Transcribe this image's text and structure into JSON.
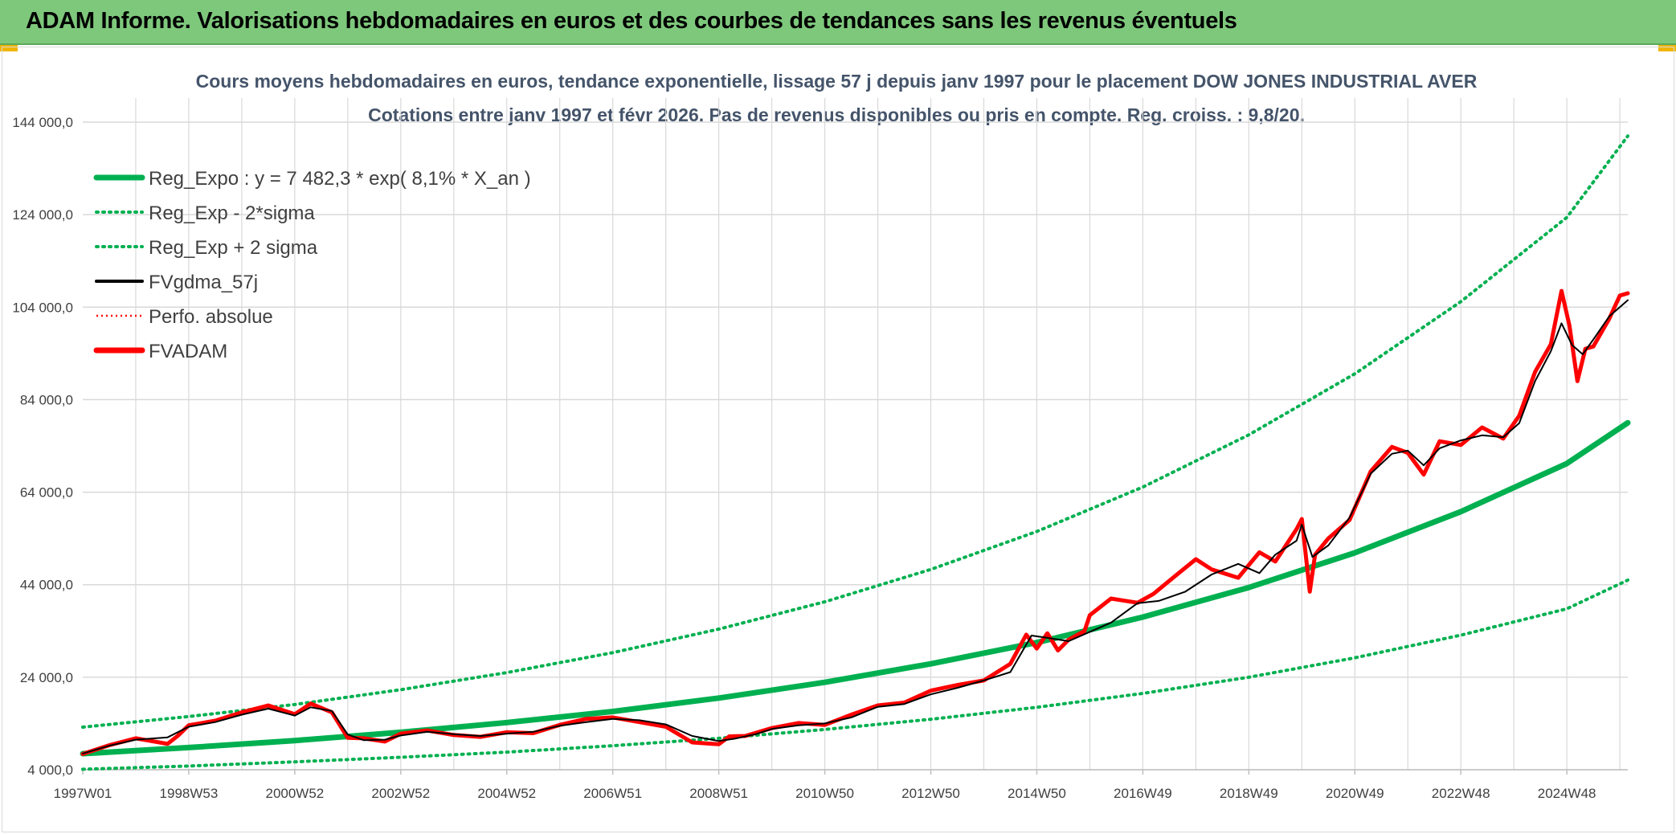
{
  "header": {
    "title": "ADAM Informe. Valorisations hebdomadaires en euros et des courbes de tendances sans les revenus éventuels"
  },
  "colors": {
    "banner": "#7ec87c",
    "reg_expo": "#00b050",
    "fvadam": "#ff0000",
    "fvgdma": "#000000",
    "perfo": "#ff0000",
    "grid": "#d9d9d9"
  },
  "chart_data": {
    "type": "line",
    "title": "Cours moyens hebdomadaires en euros, tendance exponentielle, lissage 57 j depuis janv 1997 pour le placement DOW JONES INDUSTRIAL AVER",
    "subtitle": "Cotations entre janv 1997 et févr 2026. Pas de revenus disponibles ou pris en compte. Reg. croiss. : 9,8/20.",
    "xlabel": "",
    "ylabel": "",
    "ylim": [
      4000,
      144000
    ],
    "xlim": [
      1997.0,
      2026.15
    ],
    "y_ticks": [
      4000,
      24000,
      44000,
      64000,
      84000,
      104000,
      124000,
      144000
    ],
    "y_tick_labels": [
      "4 000,0",
      "24 000,0",
      "44 000,0",
      "64 000,0",
      "84 000,0",
      "104 000,0",
      "124 000,0",
      "144 000,0"
    ],
    "x_tick_labels": [
      "1997W01",
      "1998W53",
      "2000W52",
      "2002W52",
      "2004W52",
      "2006W51",
      "2008W51",
      "2010W50",
      "2012W50",
      "2014W50",
      "2016W49",
      "2018W49",
      "2020W49",
      "2022W48",
      "2024W48"
    ],
    "x_tick_positions": [
      1997.0,
      1999.0,
      2001.0,
      2003.0,
      2005.0,
      2007.0,
      2009.0,
      2011.0,
      2013.0,
      2015.0,
      2017.0,
      2019.0,
      2021.0,
      2023.0,
      2025.0
    ],
    "grid": true,
    "legend_position": "top-left",
    "legend": [
      {
        "label": "Reg_Expo : y = 7 482,3 * exp( 8,1% *  X_an )",
        "color": "#00b050",
        "style": "solid-thick"
      },
      {
        "label": "Reg_Exp - 2*sigma",
        "color": "#00b050",
        "style": "dotted"
      },
      {
        "label": "Reg_Exp + 2 sigma",
        "color": "#00b050",
        "style": "dotted"
      },
      {
        "label": "FVgdma_57j",
        "color": "#000000",
        "style": "solid"
      },
      {
        "label": "Perfo. absolue",
        "color": "#ff0000",
        "style": "dotted-thin"
      },
      {
        "label": "FVADAM",
        "color": "#ff0000",
        "style": "solid-thick"
      }
    ],
    "series": [
      {
        "name": "Reg_Expo : y = 7 482,3 * exp( 8,1% *  X_an )",
        "x": [
          1997.0,
          1999.0,
          2001.0,
          2003.0,
          2005.0,
          2007.0,
          2009.0,
          2011.0,
          2013.0,
          2015.0,
          2017.0,
          2019.0,
          2021.0,
          2023.0,
          2025.0,
          2026.15
        ],
        "values": [
          7480,
          8800,
          10300,
          12100,
          14200,
          16600,
          19500,
          22900,
          26900,
          31500,
          37000,
          43400,
          50900,
          59800,
          70200,
          79000
        ]
      },
      {
        "name": "Reg_Exp - 2*sigma",
        "x": [
          1997.0,
          1999.0,
          2001.0,
          2003.0,
          2005.0,
          2007.0,
          2009.0,
          2011.0,
          2013.0,
          2015.0,
          2017.0,
          2019.0,
          2021.0,
          2023.0,
          2025.0,
          2026.15
        ],
        "values": [
          4100,
          4800,
          5700,
          6700,
          7800,
          9200,
          10800,
          12700,
          14900,
          17500,
          20500,
          24000,
          28200,
          33100,
          38800,
          45000
        ]
      },
      {
        "name": "Reg_Exp + 2 sigma",
        "x": [
          1997.0,
          1999.0,
          2001.0,
          2003.0,
          2005.0,
          2007.0,
          2009.0,
          2011.0,
          2013.0,
          2015.0,
          2017.0,
          2019.0,
          2021.0,
          2023.0,
          2025.0,
          2026.15
        ],
        "values": [
          13200,
          15500,
          18100,
          21300,
          25000,
          29300,
          34400,
          40300,
          47300,
          55500,
          65100,
          76400,
          89600,
          105200,
          123400,
          141000
        ]
      },
      {
        "name": "FVgdma_57j",
        "x": [
          1997.0,
          1997.5,
          1998.0,
          1998.6,
          1999.0,
          1999.5,
          2000.0,
          2000.5,
          2001.0,
          2001.3,
          2001.7,
          2002.0,
          2002.3,
          2002.7,
          2003.0,
          2003.5,
          2004.0,
          2004.5,
          2005.0,
          2005.5,
          2006.0,
          2006.5,
          2007.0,
          2007.5,
          2008.0,
          2008.5,
          2009.0,
          2009.3,
          2009.7,
          2010.0,
          2010.5,
          2011.0,
          2011.5,
          2012.0,
          2012.5,
          2013.0,
          2013.5,
          2014.0,
          2014.5,
          2014.9,
          2015.2,
          2015.6,
          2016.0,
          2016.4,
          2016.9,
          2017.3,
          2017.8,
          2018.3,
          2018.8,
          2019.2,
          2019.5,
          2019.9,
          2020.0,
          2020.2,
          2020.5,
          2020.9,
          2021.3,
          2021.7,
          2022.0,
          2022.3,
          2022.6,
          2023.0,
          2023.4,
          2023.8,
          2024.1,
          2024.4,
          2024.7,
          2024.9,
          2025.1,
          2025.3,
          2025.5,
          2025.8,
          2026.15
        ],
        "values": [
          7500,
          9200,
          10500,
          11000,
          13300,
          14300,
          15900,
          17200,
          15700,
          17500,
          16700,
          11600,
          10400,
          10500,
          11400,
          12200,
          11700,
          11300,
          11800,
          12200,
          13500,
          14300,
          15000,
          14700,
          13800,
          11300,
          10200,
          10700,
          11700,
          12800,
          13600,
          14000,
          15300,
          17600,
          18200,
          20300,
          21700,
          23300,
          25100,
          33000,
          32500,
          31800,
          33800,
          35800,
          40000,
          40500,
          42500,
          46200,
          48500,
          46500,
          50500,
          53500,
          57000,
          50000,
          52500,
          58500,
          68000,
          72300,
          73000,
          69800,
          73500,
          75200,
          76300,
          75900,
          78900,
          88000,
          94500,
          100500,
          95800,
          93800,
          97000,
          102000,
          105500
        ]
      },
      {
        "name": "FVADAM",
        "x": [
          1997.0,
          1997.5,
          1998.0,
          1998.6,
          1998.8,
          1999.0,
          1999.5,
          2000.0,
          2000.5,
          2001.0,
          2001.3,
          2001.7,
          2002.0,
          2002.3,
          2002.7,
          2003.0,
          2003.5,
          2004.0,
          2004.5,
          2005.0,
          2005.5,
          2006.0,
          2006.5,
          2007.0,
          2007.5,
          2008.0,
          2008.5,
          2009.0,
          2009.2,
          2009.5,
          2010.0,
          2010.5,
          2011.0,
          2011.5,
          2012.0,
          2012.5,
          2013.0,
          2013.5,
          2014.0,
          2014.5,
          2014.8,
          2015.0,
          2015.2,
          2015.4,
          2015.6,
          2015.9,
          2016.0,
          2016.4,
          2016.9,
          2017.2,
          2017.6,
          2018.0,
          2018.3,
          2018.8,
          2019.2,
          2019.5,
          2019.9,
          2020.0,
          2020.15,
          2020.25,
          2020.5,
          2020.9,
          2021.3,
          2021.7,
          2022.0,
          2022.3,
          2022.6,
          2023.0,
          2023.4,
          2023.8,
          2024.1,
          2024.4,
          2024.7,
          2024.9,
          2025.05,
          2025.2,
          2025.35,
          2025.5,
          2025.8,
          2026.0,
          2026.15
        ],
        "values": [
          7400,
          9300,
          10800,
          9600,
          11400,
          13600,
          14600,
          16400,
          17900,
          16000,
          18300,
          16400,
          10900,
          10800,
          10100,
          11800,
          12500,
          11500,
          11100,
          12100,
          11900,
          13700,
          15000,
          15300,
          14300,
          13300,
          9900,
          9500,
          11200,
          11300,
          13000,
          14100,
          13700,
          15900,
          17900,
          18500,
          21100,
          22300,
          23300,
          26900,
          33200,
          30200,
          33500,
          29800,
          32100,
          34000,
          37400,
          41000,
          40100,
          42000,
          45800,
          49500,
          47300,
          45500,
          51000,
          49000,
          56000,
          58200,
          42500,
          50500,
          54000,
          58000,
          68500,
          73800,
          72500,
          67800,
          75000,
          74200,
          78000,
          75600,
          80500,
          90000,
          96000,
          107500,
          100000,
          88000,
          95000,
          95500,
          101500,
          106500,
          107000
        ]
      }
    ]
  }
}
